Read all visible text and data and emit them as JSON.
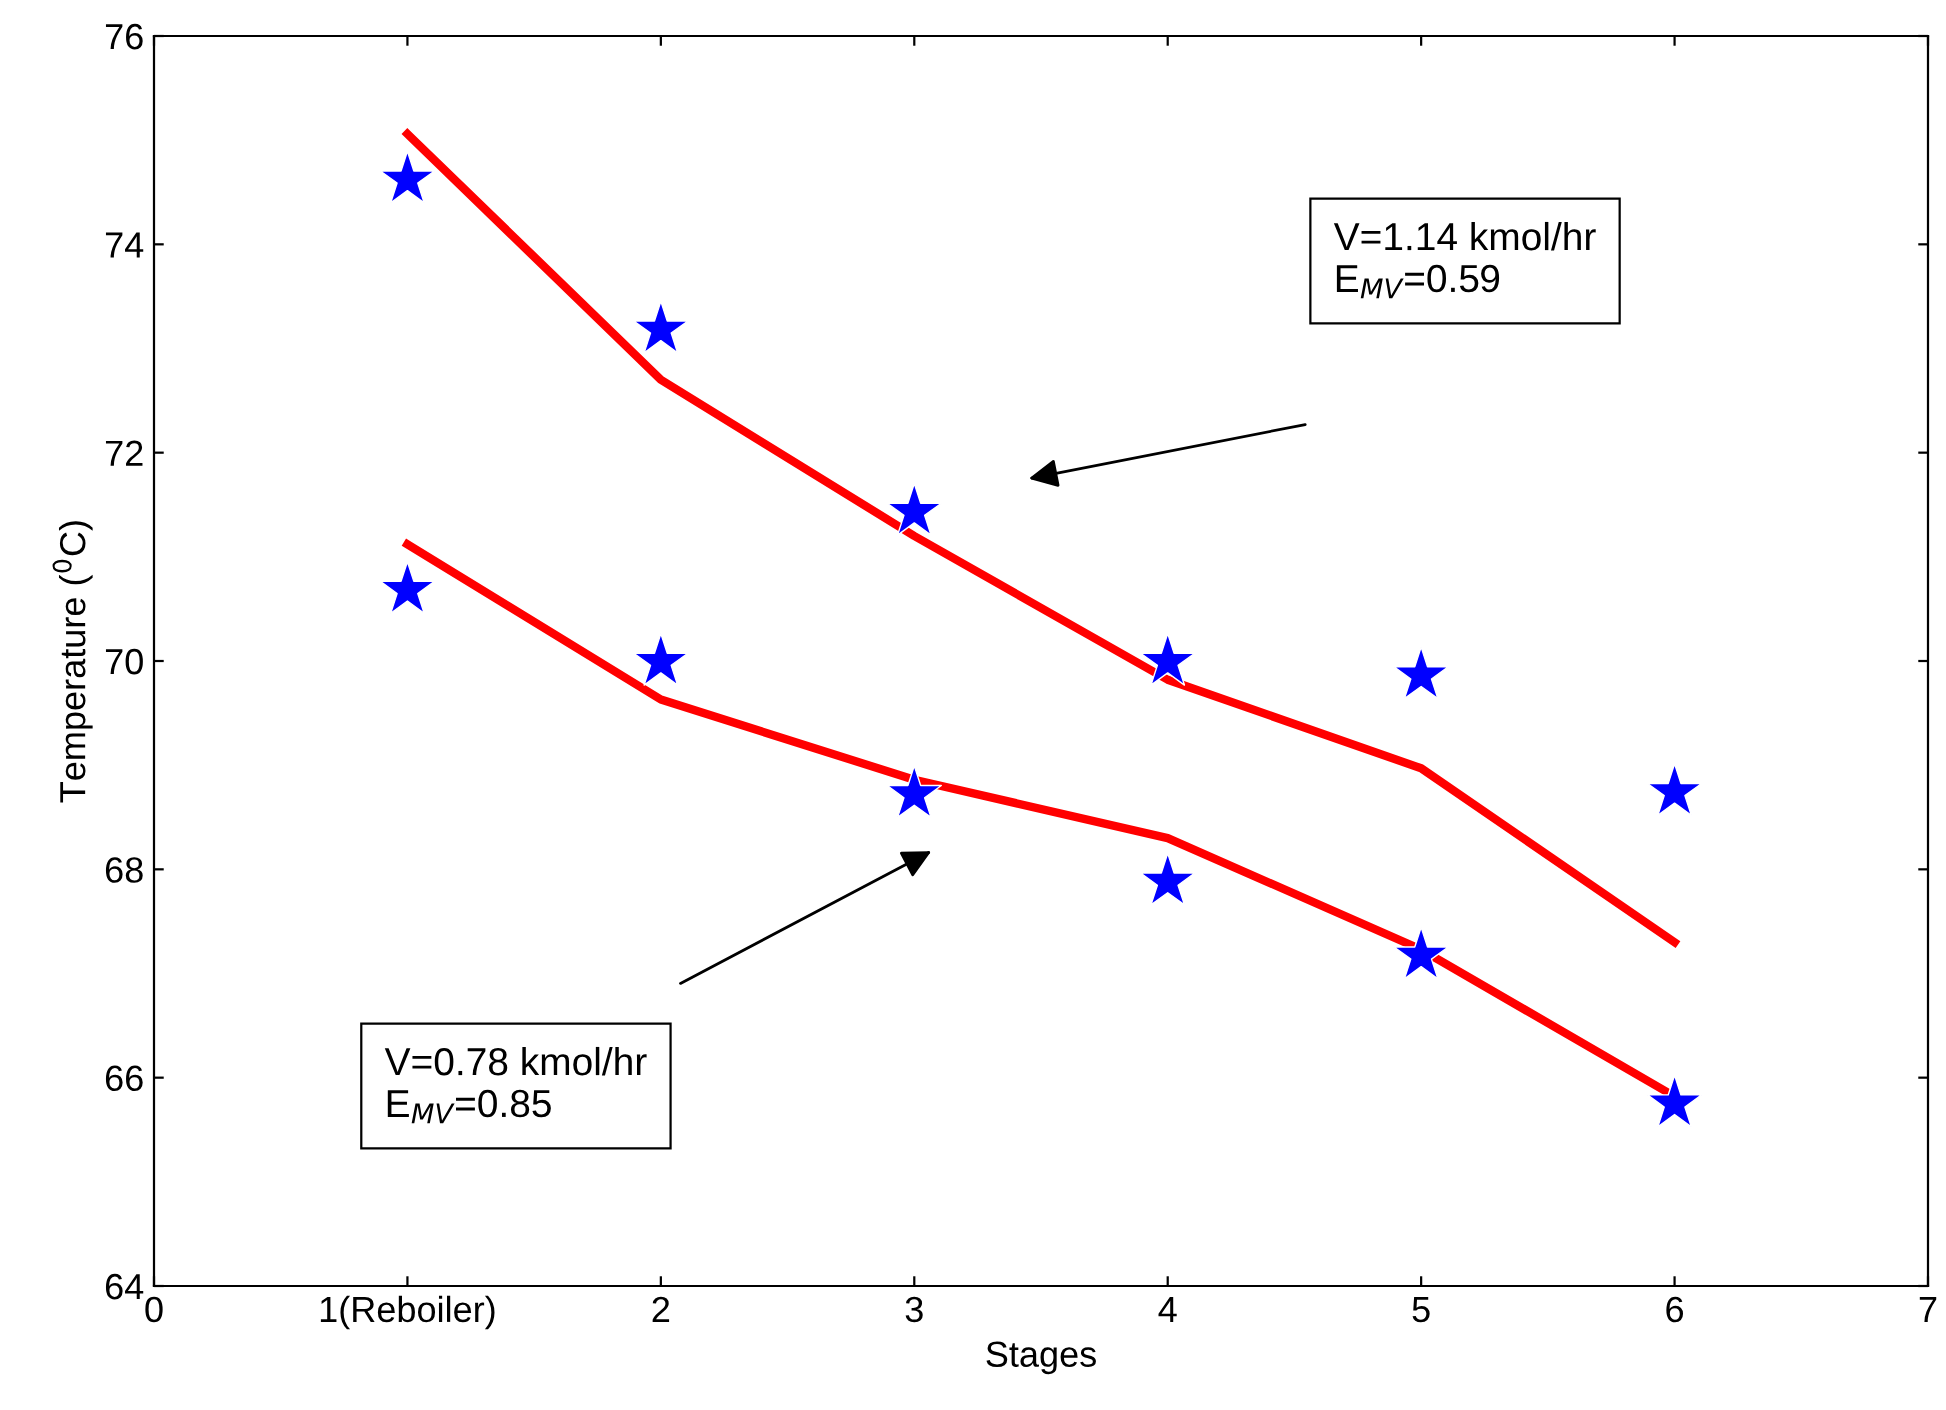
{
  "chart_data": {
    "type": "scatter",
    "xlabel": "Stages",
    "ylabel": "Temperature ($^{0}$C)",
    "x": [
      1,
      2,
      3,
      4,
      5,
      6
    ],
    "series": [
      {
        "color": "#0000ff",
        "marker": "star",
        "values": [
          74.62,
          73.18,
          71.43,
          69.99,
          69.86,
          68.74
        ]
      },
      {
        "color": "#0000ff",
        "marker": "star",
        "values": [
          70.68,
          69.99,
          68.72,
          67.88,
          67.17,
          65.75
        ]
      },
      {
        "type": "line",
        "color": "#ff0000",
        "marker": "none",
        "line_style": "solid",
        "values": [
          75.06,
          72.7,
          71.2,
          69.82,
          68.97,
          67.3
        ]
      },
      {
        "type": "line",
        "color": "#ff0000",
        "marker": "none",
        "line_style": "solid",
        "values": [
          71.12,
          69.63,
          68.86,
          68.3,
          67.23,
          65.82
        ]
      }
    ],
    "annotations": [
      "V=1.14 kmol/hr\nE$_{MV}$=0.59",
      "V=0.78 kmol/hr\nE$_{MV}$=0.85"
    ],
    "xlim": [
      0,
      7
    ],
    "xticks": [
      0,
      {
        "value": 1,
        "label": "1(Reboiler)"
      },
      2,
      3,
      4,
      5,
      6,
      7
    ],
    "ylim": [
      64,
      76
    ],
    "yticks": [
      64,
      66,
      68,
      70,
      72,
      74,
      76
    ],
    "grid": false,
    "legend": false
  }
}
